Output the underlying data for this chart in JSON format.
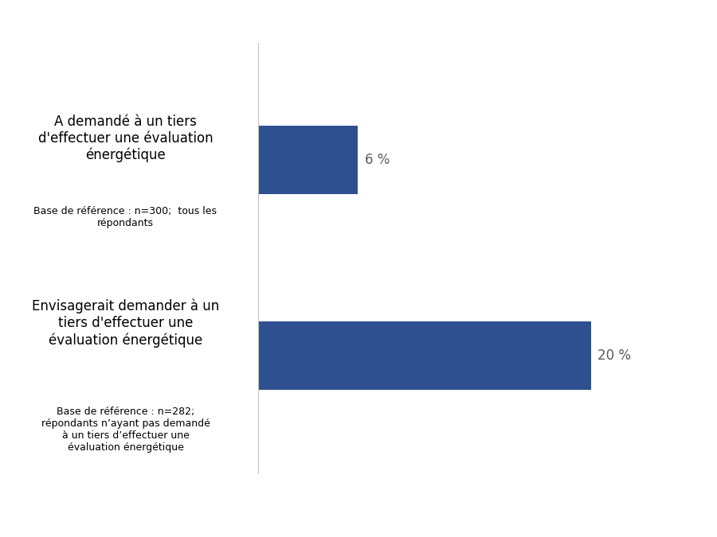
{
  "bar1_label": "A demandé à un tiers\nd'effectuer une évaluation\nénergétique",
  "bar1_note": "Base de référence : n=300;  tous les\nrépondants",
  "bar1_value": 6,
  "bar1_text": "6 %",
  "bar2_label": "Envisagerait demander à un\ntiers d'effectuer une\névaluation énergétique",
  "bar2_note": "Base de référence : n=282;\nrépondants n’ayant pas demandé\nà un tiers d’effectuer une\névaluation énergétique",
  "bar2_value": 20,
  "bar2_text": "20 %",
  "bar_color": "#2E5090",
  "value_color": "#595959",
  "label_fontsize": 12,
  "note_fontsize": 9,
  "value_fontsize": 12,
  "background_color": "#ffffff",
  "axis_line_color": "#bfbfbf",
  "max_value": 25
}
